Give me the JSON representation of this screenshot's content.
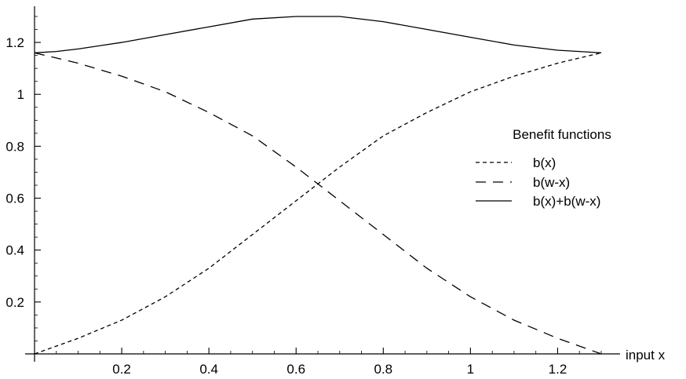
{
  "chart_data": {
    "type": "line",
    "title": "",
    "xlabel": "input x",
    "ylabel": "",
    "xlim": [
      0,
      1.3
    ],
    "ylim": [
      0,
      1.3
    ],
    "x_ticks": [
      0.2,
      0.4,
      0.6,
      0.8,
      1,
      1.2
    ],
    "x_tick_labels": [
      "0.2",
      "0.4",
      "0.6",
      "0.8",
      "1",
      "1.2"
    ],
    "y_ticks": [
      0.2,
      0.4,
      0.6,
      0.8,
      1,
      1.2
    ],
    "y_tick_labels": [
      "0.2",
      "0.4",
      "0.6",
      "0.8",
      "1",
      "1.2"
    ],
    "grid": false,
    "legend": {
      "title": "Benefit functions",
      "placement": "right",
      "entries": [
        "b(x)",
        "b(w-x)",
        "b(x)+b(w-x)"
      ]
    },
    "series": [
      {
        "name": "b(x)",
        "style": "short-dash",
        "x": [
          0,
          0.1,
          0.2,
          0.3,
          0.4,
          0.5,
          0.6,
          0.7,
          0.8,
          0.9,
          1.0,
          1.1,
          1.2,
          1.3
        ],
        "y": [
          0,
          0.06,
          0.13,
          0.22,
          0.33,
          0.46,
          0.59,
          0.72,
          0.84,
          0.93,
          1.01,
          1.07,
          1.12,
          1.16
        ]
      },
      {
        "name": "b(w-x)",
        "style": "long-dash",
        "x": [
          0,
          0.1,
          0.2,
          0.3,
          0.4,
          0.5,
          0.6,
          0.7,
          0.8,
          0.9,
          1.0,
          1.1,
          1.2,
          1.3
        ],
        "y": [
          1.16,
          1.12,
          1.07,
          1.01,
          0.93,
          0.84,
          0.72,
          0.59,
          0.46,
          0.33,
          0.22,
          0.13,
          0.06,
          0
        ]
      },
      {
        "name": "b(x)+b(w-x)",
        "style": "solid",
        "x": [
          0,
          0.05,
          0.1,
          0.2,
          0.3,
          0.4,
          0.5,
          0.6,
          0.7,
          0.8,
          0.9,
          1.0,
          1.1,
          1.2,
          1.25,
          1.3
        ],
        "y": [
          1.16,
          1.165,
          1.175,
          1.2,
          1.23,
          1.26,
          1.29,
          1.3,
          1.3,
          1.28,
          1.25,
          1.22,
          1.19,
          1.17,
          1.165,
          1.16
        ]
      }
    ]
  }
}
